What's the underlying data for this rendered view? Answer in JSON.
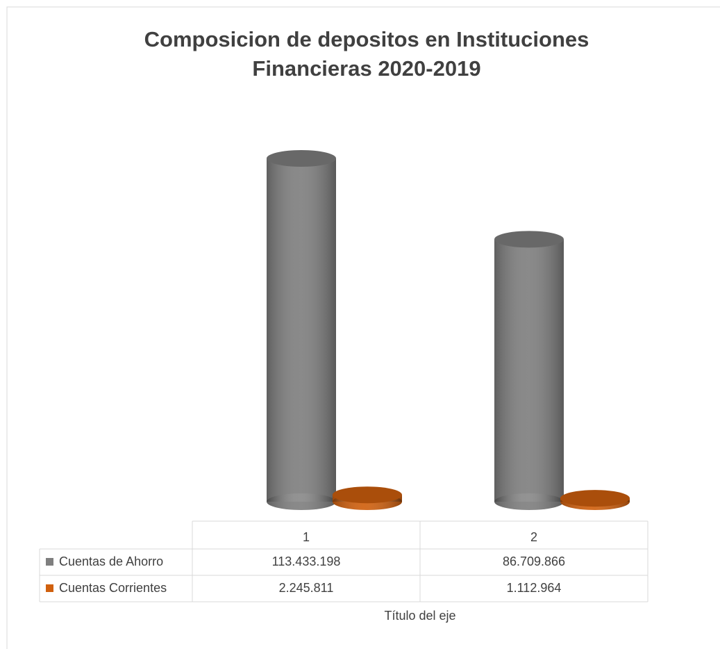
{
  "chart_data": {
    "type": "cylinder3d",
    "title": "Composicion de depositos en Instituciones Financieras 2020-2019",
    "x_label": "Título del eje",
    "categories": [
      "1",
      "2"
    ],
    "series": [
      {
        "name": "Cuentas de Ahorro",
        "color": "#7f7f7f",
        "values": [
          113433198,
          86709866
        ],
        "value_labels": [
          "113.433.198",
          "86.709.866"
        ]
      },
      {
        "name": "Cuentas Corrientes",
        "color": "#d0600e",
        "values": [
          2245811,
          1112964
        ],
        "value_labels": [
          "2.245.811",
          "1.112.964"
        ]
      }
    ]
  }
}
